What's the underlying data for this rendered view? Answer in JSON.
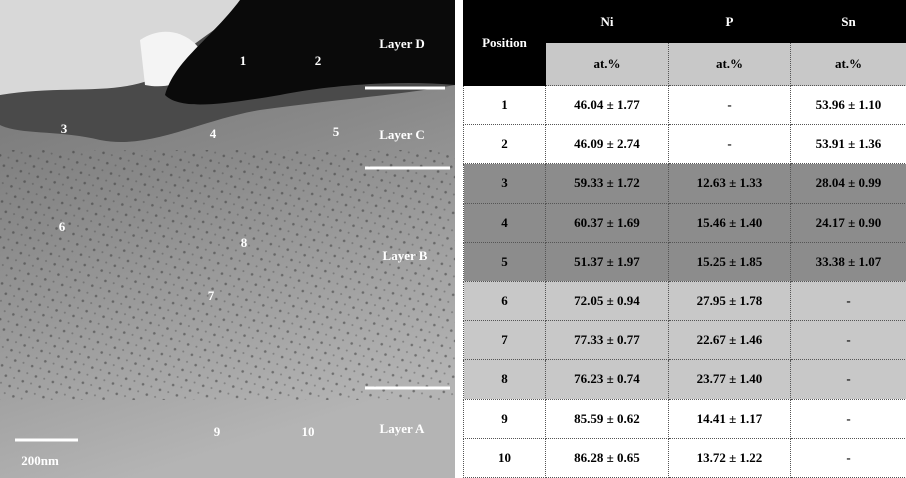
{
  "image": {
    "particles": [
      "1",
      "2",
      "3",
      "4",
      "5",
      "6",
      "7",
      "8",
      "9",
      "10"
    ],
    "layers": [
      "Layer D",
      "Layer C",
      "Layer B",
      "Layer A"
    ],
    "scale_bar": "200nm"
  },
  "table": {
    "header": [
      "Position",
      "Ni",
      "P",
      "Sn"
    ],
    "units": [
      "at.%",
      "at.%",
      "at.%"
    ],
    "rows": [
      [
        "1",
        "46.04 ± 1.77",
        "-",
        "53.96 ± 1.10"
      ],
      [
        "2",
        "46.09 ± 2.74",
        "-",
        "53.91 ± 1.36"
      ],
      [
        "3",
        "59.33 ± 1.72",
        "12.63 ± 1.33",
        "28.04 ± 0.99"
      ],
      [
        "4",
        "60.37 ± 1.69",
        "15.46 ± 1.40",
        "24.17 ± 0.90"
      ],
      [
        "5",
        "51.37 ± 1.97",
        "15.25 ± 1.85",
        "33.38 ± 1.07"
      ],
      [
        "6",
        "72.05 ± 0.94",
        "27.95 ± 1.78",
        "-"
      ],
      [
        "7",
        "77.33 ± 0.77",
        "22.67 ± 1.46",
        "-"
      ],
      [
        "8",
        "76.23 ± 0.74",
        "23.77 ± 1.40",
        "-"
      ],
      [
        "9",
        "85.59 ± 0.62",
        "14.41 ± 1.17",
        "-"
      ],
      [
        "10",
        "86.28 ± 0.65",
        "13.72 ± 1.22",
        "-"
      ]
    ]
  }
}
